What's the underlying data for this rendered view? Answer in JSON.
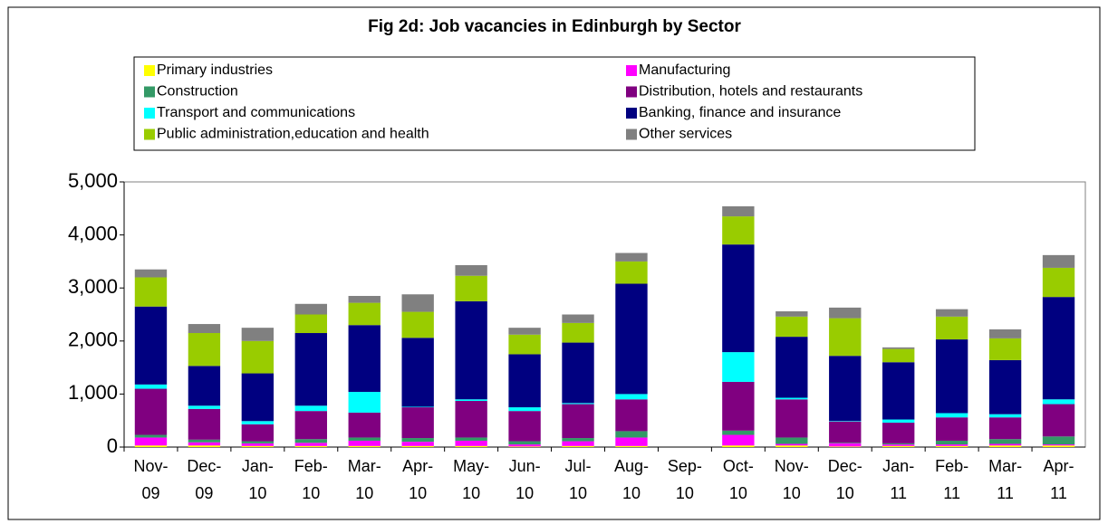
{
  "chart_data": {
    "type": "bar",
    "stacked": true,
    "title": "Fig 2d: Job vacancies in Edinburgh by Sector",
    "categories": [
      "Nov-09",
      "Dec-09",
      "Jan-10",
      "Feb-10",
      "Mar-10",
      "Apr-10",
      "May-10",
      "Jun-10",
      "Jul-10",
      "Aug-10",
      "Sep-10",
      "Oct-10",
      "Nov-10",
      "Dec-10",
      "Jan-11",
      "Feb-11",
      "Mar-11",
      "Apr-11"
    ],
    "series": [
      {
        "name": "Primary industries",
        "color": "#ffff00",
        "values": [
          30,
          30,
          20,
          20,
          20,
          20,
          20,
          10,
          20,
          20,
          null,
          30,
          30,
          10,
          20,
          20,
          30,
          30
        ]
      },
      {
        "name": "Manufacturing",
        "color": "#ff00ff",
        "values": [
          150,
          60,
          50,
          60,
          100,
          80,
          100,
          40,
          90,
          160,
          null,
          200,
          30,
          60,
          30,
          30,
          30,
          20
        ]
      },
      {
        "name": "Construction",
        "color": "#339966",
        "values": [
          50,
          50,
          40,
          70,
          60,
          70,
          60,
          60,
          60,
          120,
          null,
          80,
          120,
          10,
          20,
          70,
          90,
          150
        ]
      },
      {
        "name": "Distribution, hotels and restaurants",
        "color": "#800080",
        "values": [
          870,
          580,
          320,
          530,
          470,
          580,
          690,
          570,
          640,
          600,
          null,
          920,
          720,
          400,
          390,
          440,
          410,
          610
        ]
      },
      {
        "name": "Transport and communications",
        "color": "#00ffff",
        "values": [
          80,
          60,
          60,
          100,
          390,
          10,
          30,
          70,
          20,
          100,
          null,
          560,
          30,
          10,
          60,
          80,
          60,
          90
        ]
      },
      {
        "name": "Banking, finance and insurance",
        "color": "#000080",
        "values": [
          1470,
          750,
          900,
          1370,
          1260,
          1300,
          1850,
          1000,
          1140,
          2080,
          null,
          2030,
          1150,
          1230,
          1080,
          1390,
          1020,
          1930
        ]
      },
      {
        "name": "Public administration,education and health",
        "color": "#99cc00",
        "values": [
          550,
          620,
          610,
          350,
          420,
          490,
          480,
          370,
          370,
          420,
          null,
          530,
          380,
          710,
          250,
          430,
          410,
          550
        ]
      },
      {
        "name": "Other services",
        "color": "#808080",
        "values": [
          150,
          170,
          250,
          200,
          130,
          330,
          200,
          130,
          160,
          160,
          null,
          190,
          100,
          200,
          30,
          140,
          170,
          240
        ]
      }
    ],
    "ylim": [
      0,
      5000
    ],
    "yticks": [
      0,
      {
        "value": 1000,
        "label": "1,000"
      },
      {
        "value": 2000,
        "label": "2,000"
      },
      {
        "value": 3000,
        "label": "3,000"
      },
      {
        "value": 4000,
        "label": "4,000"
      },
      {
        "value": 5000,
        "label": "5,000"
      }
    ],
    "grid": false
  }
}
